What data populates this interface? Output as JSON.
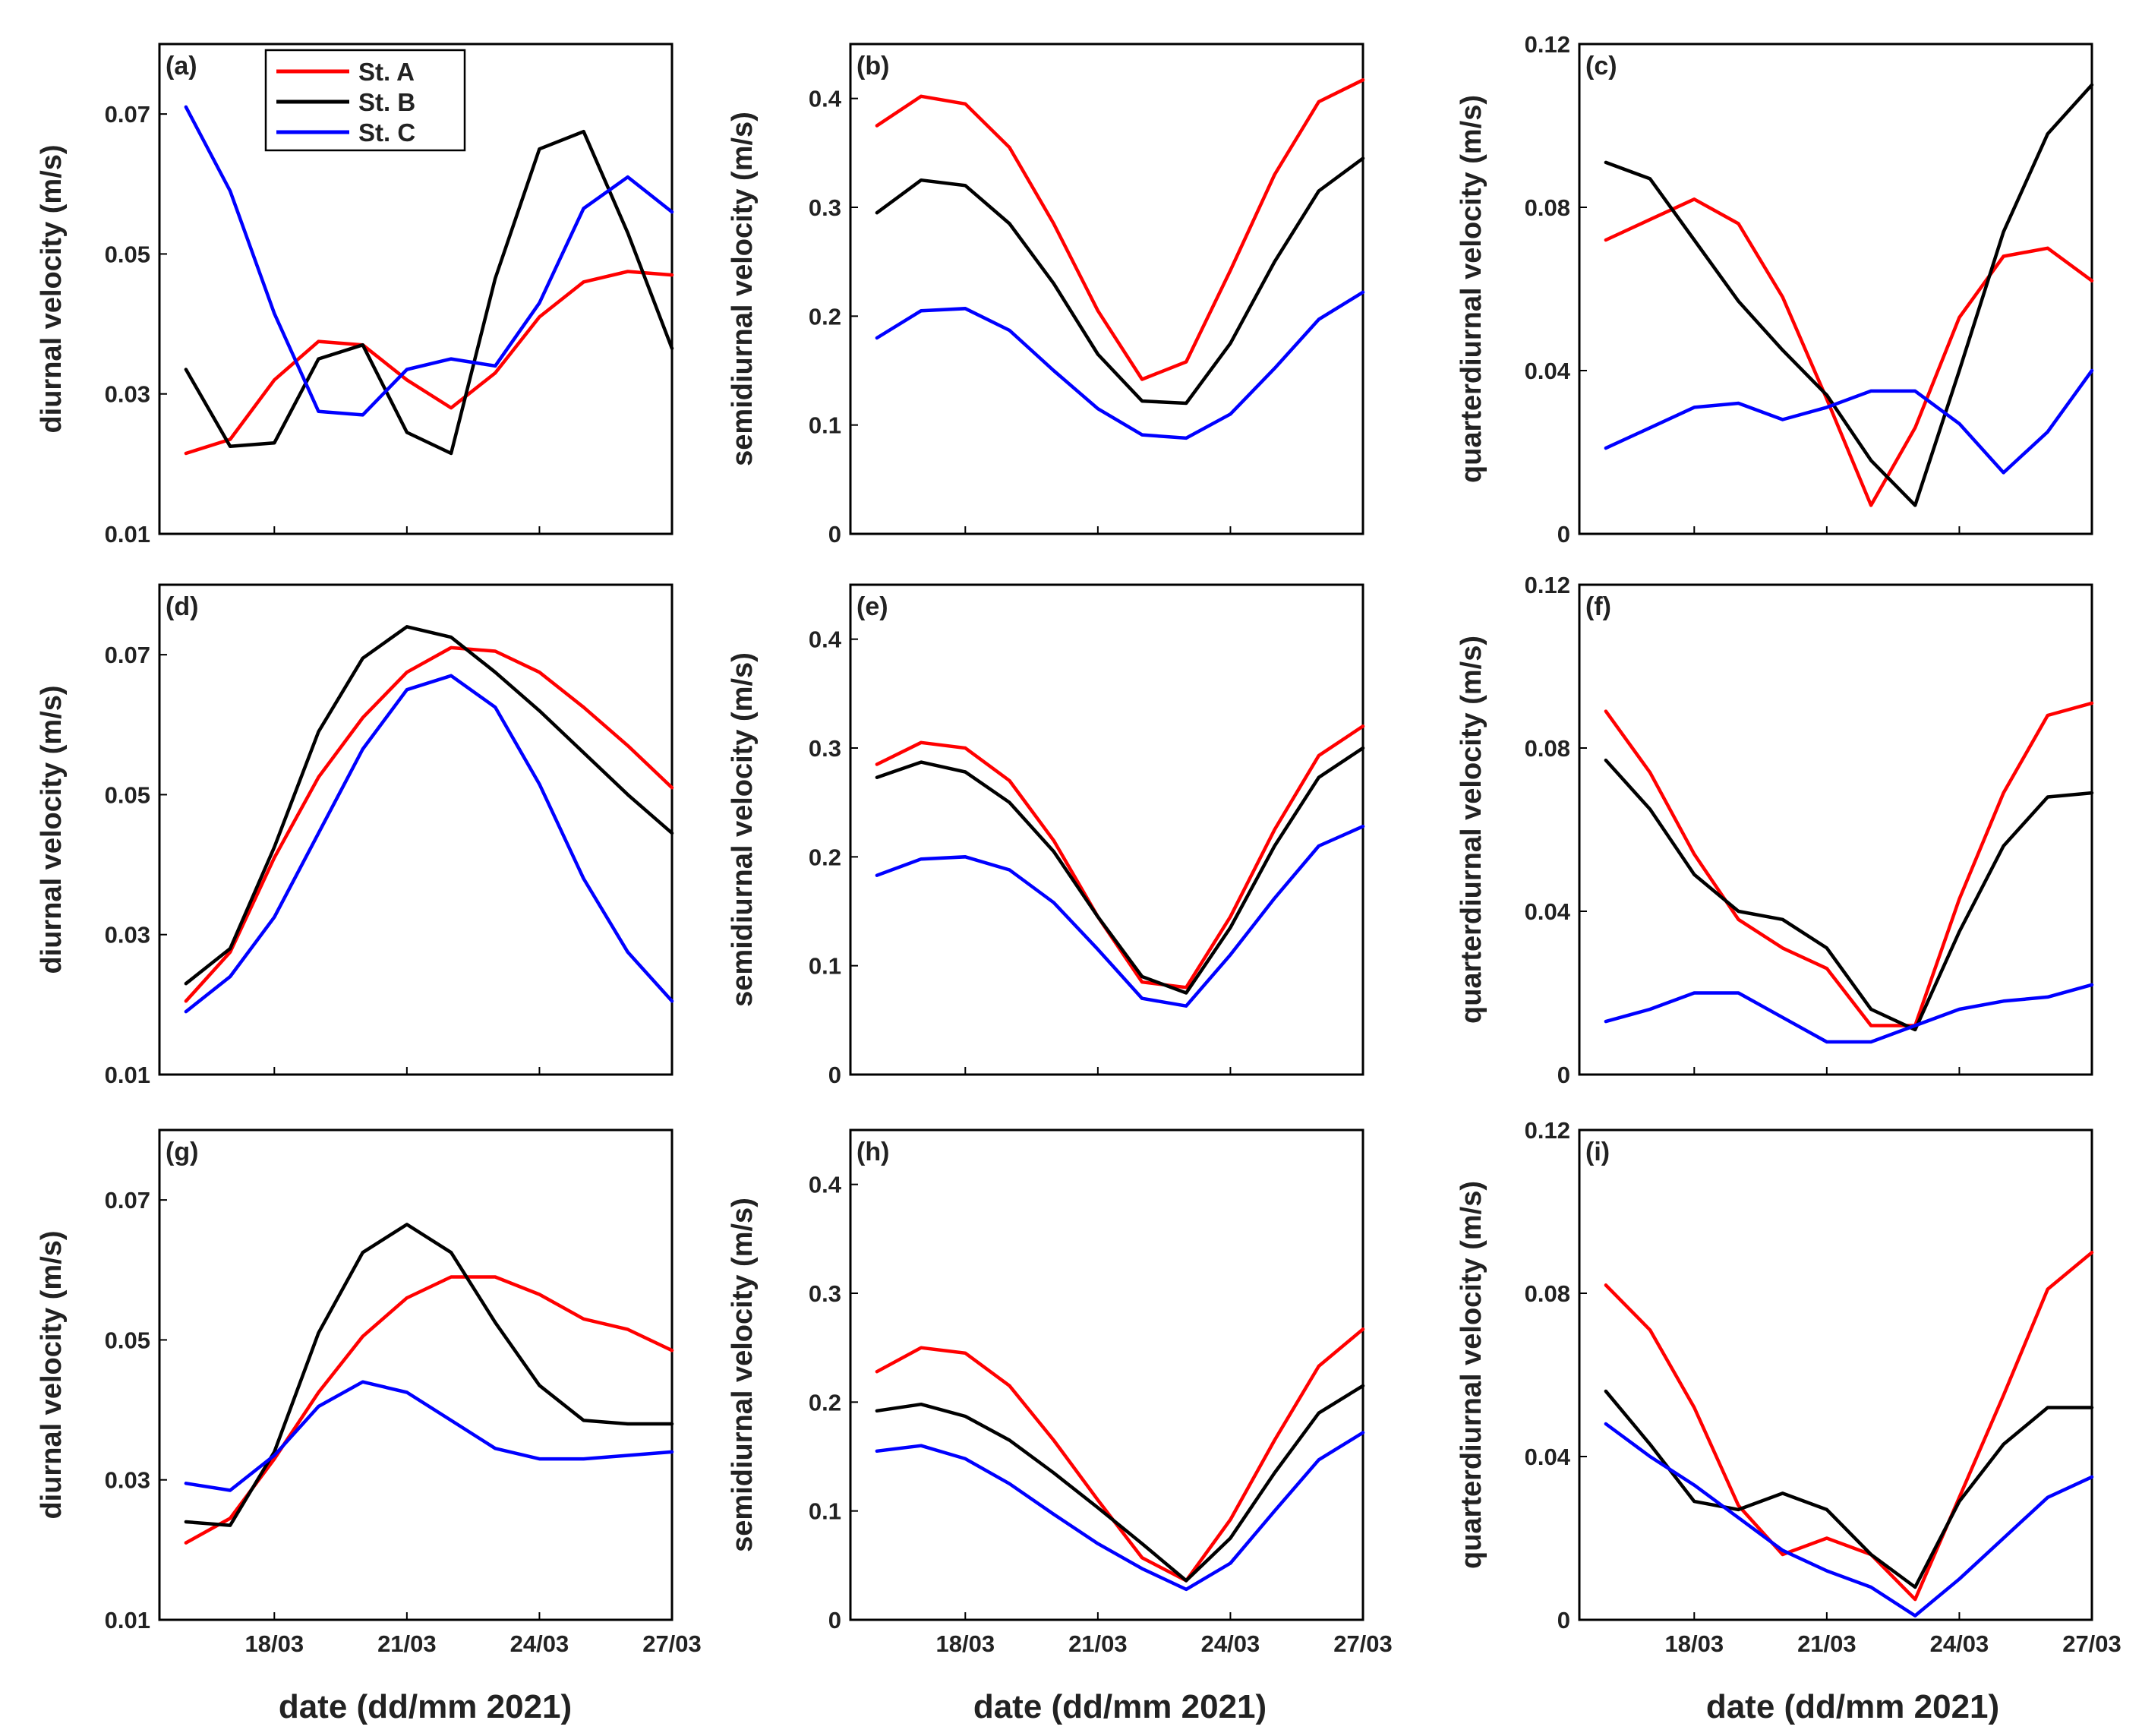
{
  "figure": {
    "xlabel": "date (dd/mm 2021)",
    "x_tick_labels": [
      "18/03",
      "21/03",
      "24/03",
      "27/03"
    ],
    "legend": [
      "St. A",
      "St. B",
      "St. C"
    ],
    "colors": {
      "St. A": "#ff0000",
      "St. B": "#000000",
      "St. C": "#0000ff"
    }
  },
  "chart_data": [
    {
      "panel": "(a)",
      "type": "line",
      "ylabel": "diurnal velocity (m/s)",
      "ylim": [
        0.01,
        0.08
      ],
      "yticks": [
        "0.01",
        "0.03",
        "0.05",
        "0.07"
      ],
      "show_legend": true,
      "x": [
        16,
        17,
        18,
        19,
        20,
        21,
        22,
        23,
        24,
        25,
        26,
        27
      ],
      "series": [
        {
          "name": "St. A",
          "values": [
            0.0215,
            0.0235,
            0.032,
            0.0375,
            0.037,
            0.032,
            0.028,
            0.033,
            0.041,
            0.046,
            0.0475,
            0.047
          ]
        },
        {
          "name": "St. B",
          "values": [
            0.0335,
            0.0225,
            0.023,
            0.035,
            0.037,
            0.0245,
            0.0215,
            0.0465,
            0.065,
            0.0675,
            0.053,
            0.0365
          ]
        },
        {
          "name": "St. C",
          "values": [
            0.071,
            0.059,
            0.0415,
            0.0275,
            0.027,
            0.0335,
            0.035,
            0.034,
            0.043,
            0.0565,
            0.061,
            0.056
          ]
        }
      ]
    },
    {
      "panel": "(b)",
      "type": "line",
      "ylabel": "semidiurnal velocity (m/s)",
      "ylim": [
        0,
        0.45
      ],
      "yticks": [
        "0",
        "0.1",
        "0.2",
        "0.3",
        "0.4"
      ],
      "show_legend": false,
      "x": [
        16,
        17,
        18,
        19,
        20,
        21,
        22,
        23,
        24,
        25,
        26,
        27
      ],
      "series": [
        {
          "name": "St. A",
          "values": [
            0.375,
            0.402,
            0.395,
            0.355,
            0.285,
            0.205,
            0.142,
            0.158,
            0.242,
            0.33,
            0.397,
            0.417
          ]
        },
        {
          "name": "St. B",
          "values": [
            0.295,
            0.325,
            0.32,
            0.285,
            0.23,
            0.165,
            0.122,
            0.12,
            0.175,
            0.25,
            0.315,
            0.345
          ]
        },
        {
          "name": "St. C",
          "values": [
            0.18,
            0.205,
            0.207,
            0.187,
            0.15,
            0.115,
            0.091,
            0.088,
            0.11,
            0.152,
            0.197,
            0.222
          ]
        }
      ]
    },
    {
      "panel": "(c)",
      "type": "line",
      "ylabel": "quarterdiurnal velocity (m/s)",
      "ylim": [
        0,
        0.12
      ],
      "yticks": [
        "0",
        "0.04",
        "0.08",
        "0.12"
      ],
      "show_legend": false,
      "x": [
        16,
        17,
        18,
        19,
        20,
        21,
        22,
        23,
        24,
        25,
        26,
        27
      ],
      "series": [
        {
          "name": "St. A",
          "values": [
            0.072,
            0.077,
            0.082,
            0.076,
            0.058,
            0.033,
            0.007,
            0.026,
            0.053,
            0.068,
            0.07,
            0.062
          ]
        },
        {
          "name": "St. B",
          "values": [
            0.091,
            0.087,
            0.072,
            0.057,
            0.045,
            0.034,
            0.018,
            0.007,
            0.04,
            0.074,
            0.098,
            0.11
          ]
        },
        {
          "name": "St. C",
          "values": [
            0.021,
            0.026,
            0.031,
            0.032,
            0.028,
            0.031,
            0.035,
            0.035,
            0.027,
            0.015,
            0.025,
            0.04
          ]
        }
      ]
    },
    {
      "panel": "(d)",
      "type": "line",
      "ylabel": "diurnal velocity (m/s)",
      "ylim": [
        0.01,
        0.08
      ],
      "yticks": [
        "0.01",
        "0.03",
        "0.05",
        "0.07"
      ],
      "show_legend": false,
      "x": [
        16,
        17,
        18,
        19,
        20,
        21,
        22,
        23,
        24,
        25,
        26,
        27
      ],
      "series": [
        {
          "name": "St. A",
          "values": [
            0.0205,
            0.0275,
            0.041,
            0.0525,
            0.061,
            0.0675,
            0.071,
            0.0705,
            0.0675,
            0.0625,
            0.057,
            0.051
          ]
        },
        {
          "name": "St. B",
          "values": [
            0.023,
            0.028,
            0.0425,
            0.059,
            0.0695,
            0.074,
            0.0725,
            0.0675,
            0.062,
            0.056,
            0.05,
            0.0445
          ]
        },
        {
          "name": "St. C",
          "values": [
            0.019,
            0.024,
            0.0325,
            0.0445,
            0.0565,
            0.065,
            0.067,
            0.0625,
            0.0515,
            0.038,
            0.0275,
            0.0205
          ]
        }
      ]
    },
    {
      "panel": "(e)",
      "type": "line",
      "ylabel": "semidiurnal velocity (m/s)",
      "ylim": [
        0,
        0.45
      ],
      "yticks": [
        "0",
        "0.1",
        "0.2",
        "0.3",
        "0.4"
      ],
      "show_legend": false,
      "x": [
        16,
        17,
        18,
        19,
        20,
        21,
        22,
        23,
        24,
        25,
        26,
        27
      ],
      "series": [
        {
          "name": "St. A",
          "values": [
            0.285,
            0.305,
            0.3,
            0.27,
            0.215,
            0.145,
            0.085,
            0.08,
            0.145,
            0.225,
            0.293,
            0.32
          ]
        },
        {
          "name": "St. B",
          "values": [
            0.273,
            0.287,
            0.278,
            0.25,
            0.205,
            0.145,
            0.09,
            0.075,
            0.135,
            0.21,
            0.273,
            0.3
          ]
        },
        {
          "name": "St. C",
          "values": [
            0.183,
            0.198,
            0.2,
            0.188,
            0.158,
            0.115,
            0.07,
            0.063,
            0.11,
            0.162,
            0.21,
            0.228
          ]
        }
      ]
    },
    {
      "panel": "(f)",
      "type": "line",
      "ylabel": "quarterdiurnal velocity (m/s)",
      "ylim": [
        0,
        0.12
      ],
      "yticks": [
        "0",
        "0.04",
        "0.08",
        "0.12"
      ],
      "show_legend": false,
      "x": [
        16,
        17,
        18,
        19,
        20,
        21,
        22,
        23,
        24,
        25,
        26,
        27
      ],
      "series": [
        {
          "name": "St. A",
          "values": [
            0.089,
            0.074,
            0.054,
            0.038,
            0.031,
            0.026,
            0.012,
            0.012,
            0.043,
            0.069,
            0.088,
            0.091
          ]
        },
        {
          "name": "St. B",
          "values": [
            0.077,
            0.065,
            0.049,
            0.04,
            0.038,
            0.031,
            0.016,
            0.011,
            0.035,
            0.056,
            0.068,
            0.069
          ]
        },
        {
          "name": "St. C",
          "values": [
            0.013,
            0.016,
            0.02,
            0.02,
            0.014,
            0.008,
            0.008,
            0.012,
            0.016,
            0.018,
            0.019,
            0.022
          ]
        }
      ]
    },
    {
      "panel": "(g)",
      "type": "line",
      "ylabel": "diurnal velocity (m/s)",
      "ylim": [
        0.01,
        0.08
      ],
      "yticks": [
        "0.01",
        "0.03",
        "0.05",
        "0.07"
      ],
      "show_legend": false,
      "x": [
        16,
        17,
        18,
        19,
        20,
        21,
        22,
        23,
        24,
        25,
        26,
        27
      ],
      "series": [
        {
          "name": "St. A",
          "values": [
            0.021,
            0.0245,
            0.033,
            0.0425,
            0.0505,
            0.056,
            0.059,
            0.059,
            0.0565,
            0.053,
            0.0515,
            0.0485
          ]
        },
        {
          "name": "St. B",
          "values": [
            0.024,
            0.0235,
            0.034,
            0.051,
            0.0625,
            0.0665,
            0.0625,
            0.0525,
            0.0435,
            0.0385,
            0.038,
            0.038
          ]
        },
        {
          "name": "St. C",
          "values": [
            0.0295,
            0.0285,
            0.0335,
            0.0405,
            0.044,
            0.0425,
            0.0385,
            0.0345,
            0.033,
            0.033,
            0.0335,
            0.034
          ]
        }
      ]
    },
    {
      "panel": "(h)",
      "type": "line",
      "ylabel": "semidiurnal velocity (m/s)",
      "ylim": [
        0,
        0.45
      ],
      "yticks": [
        "0",
        "0.1",
        "0.2",
        "0.3",
        "0.4"
      ],
      "show_legend": false,
      "x": [
        16,
        17,
        18,
        19,
        20,
        21,
        22,
        23,
        24,
        25,
        26,
        27
      ],
      "series": [
        {
          "name": "St. A",
          "values": [
            0.228,
            0.25,
            0.245,
            0.215,
            0.165,
            0.11,
            0.057,
            0.036,
            0.092,
            0.165,
            0.233,
            0.267
          ]
        },
        {
          "name": "St. B",
          "values": [
            0.192,
            0.198,
            0.187,
            0.165,
            0.135,
            0.103,
            0.07,
            0.036,
            0.075,
            0.135,
            0.19,
            0.215
          ]
        },
        {
          "name": "St. C",
          "values": [
            0.155,
            0.16,
            0.148,
            0.125,
            0.097,
            0.07,
            0.047,
            0.028,
            0.052,
            0.1,
            0.147,
            0.172
          ]
        }
      ]
    },
    {
      "panel": "(i)",
      "type": "line",
      "ylabel": "quarterdiurnal velocity (m/s)",
      "ylim": [
        0,
        0.12
      ],
      "yticks": [
        "0",
        "0.04",
        "0.08",
        "0.12"
      ],
      "show_legend": false,
      "x": [
        16,
        17,
        18,
        19,
        20,
        21,
        22,
        23,
        24,
        25,
        26,
        27
      ],
      "series": [
        {
          "name": "St. A",
          "values": [
            0.082,
            0.071,
            0.052,
            0.028,
            0.016,
            0.02,
            0.016,
            0.005,
            0.03,
            0.055,
            0.081,
            0.09
          ]
        },
        {
          "name": "St. B",
          "values": [
            0.056,
            0.043,
            0.029,
            0.027,
            0.031,
            0.027,
            0.016,
            0.008,
            0.029,
            0.043,
            0.052,
            0.052
          ]
        },
        {
          "name": "St. C",
          "values": [
            0.048,
            0.04,
            0.033,
            0.025,
            0.017,
            0.012,
            0.008,
            0.001,
            0.01,
            0.02,
            0.03,
            0.035
          ]
        }
      ]
    }
  ]
}
